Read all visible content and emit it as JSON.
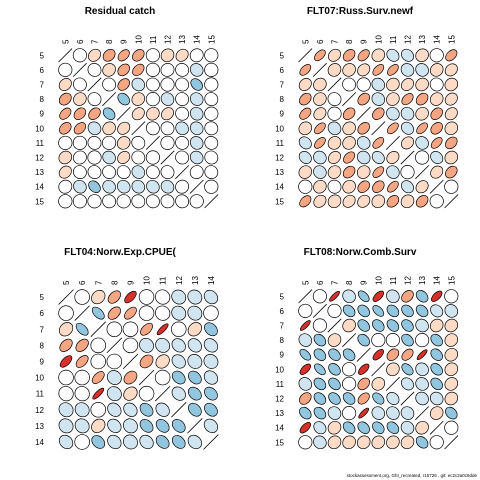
{
  "colors": {
    "positive_strong": "#d6312b",
    "positive_mid": "#f4a582",
    "positive_light": "#fddbc7",
    "neutral": "#ffffff",
    "negative_light": "#d1e5f0",
    "negative_mid": "#92c5de",
    "negative_strong": "#4393c3",
    "outline": "#000000"
  },
  "footer": "stockassessment.org, GhI_recreated, r15726 , git: ec2c2a0c6dde",
  "chart_data": [
    {
      "type": "heatmap",
      "subtype": "correlation-ellipses",
      "title": "Residual catch",
      "labels": [
        "5",
        "6",
        "7",
        "8",
        "9",
        "10",
        "11",
        "12",
        "13",
        "14",
        "15"
      ],
      "values": [
        [
          1,
          0,
          0.2,
          0.25,
          0.4,
          0.3,
          0,
          0.1,
          0.2,
          0.05,
          0
        ],
        [
          0,
          1,
          -0.05,
          0.1,
          0.3,
          0.35,
          0,
          0.05,
          -0.05,
          -0.1,
          0
        ],
        [
          0.2,
          -0.05,
          1,
          -0.05,
          0.3,
          -0.1,
          -0.05,
          0,
          -0.05,
          -0.3,
          0
        ],
        [
          0.25,
          0.1,
          -0.05,
          1,
          -0.3,
          0.1,
          0,
          -0.1,
          -0.05,
          -0.1,
          -0.05
        ],
        [
          0.4,
          0.3,
          0.3,
          -0.3,
          1,
          0.2,
          0.1,
          0.2,
          -0.05,
          -0.1,
          0
        ],
        [
          0.3,
          0.35,
          -0.1,
          0.1,
          0.2,
          1,
          -0.05,
          -0.05,
          -0.1,
          -0.1,
          -0.05
        ],
        [
          0,
          0,
          -0.05,
          0,
          0.1,
          -0.05,
          1,
          0,
          -0.05,
          -0.1,
          -0.05
        ],
        [
          0.1,
          0.05,
          0,
          -0.1,
          0.2,
          -0.05,
          0,
          1,
          -0.05,
          -0.1,
          -0.05
        ],
        [
          0.2,
          -0.05,
          -0.05,
          -0.05,
          -0.05,
          -0.1,
          -0.05,
          -0.05,
          1,
          0.05,
          -0.05
        ],
        [
          0.05,
          -0.1,
          -0.3,
          -0.1,
          -0.1,
          -0.1,
          -0.1,
          -0.1,
          0.05,
          1,
          0
        ],
        [
          0,
          0,
          0,
          -0.05,
          0,
          -0.05,
          -0.05,
          -0.05,
          -0.05,
          0,
          1
        ]
      ]
    },
    {
      "type": "heatmap",
      "subtype": "correlation-ellipses",
      "title": "FLT07:Russ.Surv.newf",
      "labels": [
        "5",
        "6",
        "7",
        "8",
        "9",
        "10",
        "11",
        "12",
        "13",
        "14",
        "15"
      ],
      "values": [
        [
          1,
          0.5,
          0.2,
          0.3,
          0.4,
          0.1,
          -0.2,
          -0.2,
          0.1,
          0,
          0.4
        ],
        [
          0.5,
          1,
          0.1,
          0.1,
          0.2,
          0.5,
          0.5,
          -0.1,
          -0.1,
          0.1,
          0.2
        ],
        [
          0.2,
          0.1,
          1,
          -0.05,
          0,
          -0.1,
          0.1,
          0.2,
          0.1,
          -0.05,
          0.1
        ],
        [
          0.3,
          0.1,
          -0.05,
          1,
          0.3,
          -0.1,
          0.1,
          0.4,
          0.3,
          0.1,
          0.2
        ],
        [
          0.4,
          0.2,
          0,
          0.3,
          1,
          0.3,
          -0.1,
          -0.1,
          0.1,
          0.3,
          0.2
        ],
        [
          0.1,
          0.5,
          -0.1,
          0.1,
          0.3,
          1,
          0.5,
          -0.2,
          0.5,
          0.3,
          0.1
        ],
        [
          -0.2,
          0.5,
          0.1,
          0.1,
          -0.1,
          0.5,
          1,
          0.2,
          -0.1,
          0.5,
          0.3
        ],
        [
          -0.2,
          -0.1,
          0.2,
          0.4,
          -0.1,
          -0.2,
          0.2,
          1,
          0,
          -0.2,
          0.1
        ],
        [
          0.1,
          -0.1,
          0.1,
          0.3,
          0.1,
          0.5,
          -0.1,
          0,
          1,
          0.2,
          0.3
        ],
        [
          0,
          0.1,
          -0.05,
          0.1,
          0.3,
          0.3,
          0.5,
          -0.2,
          0.2,
          1,
          0
        ],
        [
          0.4,
          0.2,
          0.1,
          0.2,
          0.2,
          0.1,
          0.3,
          0.1,
          0.3,
          0,
          1
        ]
      ]
    },
    {
      "type": "heatmap",
      "subtype": "correlation-ellipses",
      "title": "FLT04:Norw.Exp.CPUE(",
      "labels": [
        "5",
        "6",
        "7",
        "8",
        "9",
        "10",
        "11",
        "12",
        "13",
        "14"
      ],
      "values": [
        [
          1,
          0,
          0.2,
          0.4,
          0.6,
          0,
          -0.05,
          -0.1,
          -0.1,
          -0.2
        ],
        [
          0,
          1,
          -0.5,
          0.4,
          0.5,
          0,
          -0.05,
          -0.1,
          -0.1,
          0
        ],
        [
          0.2,
          -0.5,
          1,
          0,
          0,
          0.5,
          0.8,
          0,
          0.2,
          -0.3
        ],
        [
          0.4,
          0.4,
          0,
          1,
          0,
          -0.1,
          -0.1,
          -0.2,
          -0.2,
          -0.2
        ],
        [
          0.6,
          0.5,
          0,
          0,
          1,
          0.3,
          0.2,
          -0.2,
          -0.1,
          -0.1
        ],
        [
          0,
          0,
          0.5,
          -0.1,
          0.3,
          1,
          0,
          -0.3,
          -0.3,
          -0.2
        ],
        [
          -0.05,
          -0.05,
          0.8,
          -0.1,
          0.2,
          0,
          1,
          -0.2,
          -0.3,
          -0.3
        ],
        [
          -0.1,
          -0.1,
          0,
          -0.2,
          -0.2,
          -0.3,
          -0.2,
          1,
          -0.3,
          -0.3
        ],
        [
          -0.1,
          -0.1,
          0.2,
          -0.2,
          -0.1,
          -0.3,
          -0.3,
          -0.3,
          1,
          -0.2
        ],
        [
          -0.2,
          0,
          -0.3,
          -0.2,
          -0.1,
          -0.2,
          -0.3,
          -0.3,
          -0.2,
          1
        ]
      ]
    },
    {
      "type": "heatmap",
      "subtype": "correlation-ellipses",
      "title": "FLT08:Norw.Comb.Surv",
      "labels": [
        "5",
        "6",
        "7",
        "8",
        "9",
        "10",
        "11",
        "12",
        "13",
        "14",
        "15"
      ],
      "values": [
        [
          1,
          0,
          0.8,
          -0.1,
          -0.5,
          0.6,
          -0.1,
          0.3,
          -0.3,
          0.6,
          0
        ],
        [
          0,
          1,
          0,
          -0.3,
          -0.3,
          -0.5,
          -0.3,
          -0.3,
          -0.3,
          -0.2,
          -0.1
        ],
        [
          0.8,
          0,
          1,
          0.1,
          -0.3,
          -0.3,
          -0.3,
          -0.3,
          -0.1,
          0.1,
          0.1
        ],
        [
          -0.1,
          -0.3,
          0.1,
          1,
          -0.3,
          0,
          0,
          -0.3,
          0,
          -0.3,
          0.1
        ],
        [
          -0.5,
          -0.3,
          -0.3,
          -0.3,
          1,
          0.6,
          0.3,
          0.4,
          0.8,
          -0.3,
          0.1
        ],
        [
          0.6,
          -0.5,
          -0.3,
          0,
          0.6,
          1,
          0.1,
          -0.4,
          -0.1,
          -0.3,
          0.1
        ],
        [
          -0.1,
          -0.3,
          -0.3,
          0,
          0.3,
          0.1,
          1,
          -0.2,
          -0.1,
          -0.3,
          0.1
        ],
        [
          0.3,
          -0.3,
          -0.3,
          -0.3,
          0.4,
          -0.4,
          -0.2,
          1,
          -0.1,
          -0.1,
          0.1
        ],
        [
          -0.3,
          -0.3,
          -0.1,
          0,
          0.8,
          -0.1,
          -0.1,
          -0.1,
          1,
          0.1,
          -0.3
        ],
        [
          0.6,
          -0.2,
          0.1,
          -0.3,
          -0.3,
          -0.3,
          -0.3,
          -0.1,
          0.1,
          1,
          0
        ],
        [
          0,
          -0.1,
          0.1,
          0.1,
          0.1,
          0.1,
          0.1,
          0.1,
          -0.3,
          0,
          1
        ]
      ]
    }
  ]
}
